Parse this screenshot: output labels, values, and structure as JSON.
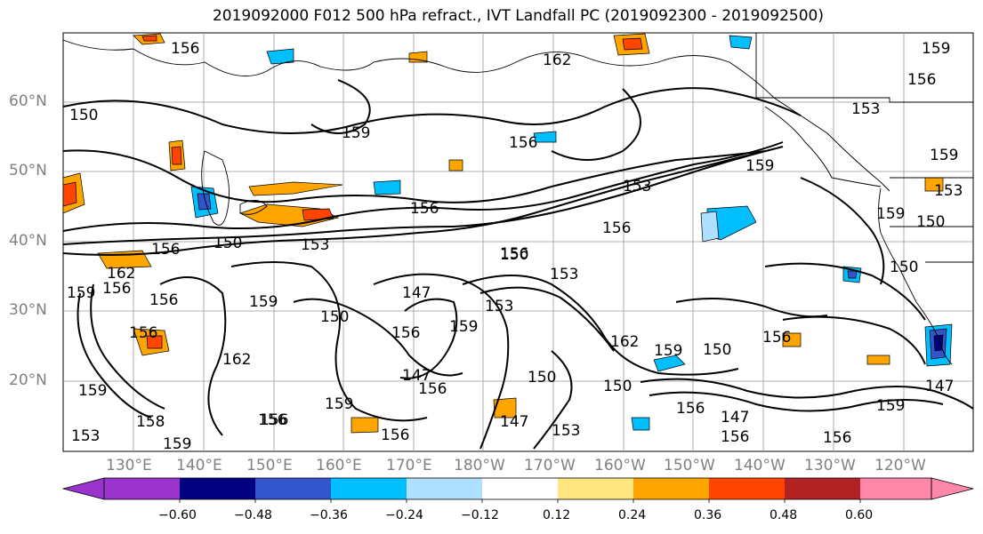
{
  "title": "2019092000 F012 500 hPa refract., IVT Landfall PC (2019092300 - 2019092500)",
  "lat_labels": [
    "60°N",
    "50°N",
    "40°N",
    "30°N",
    "20°N"
  ],
  "lon_labels": [
    "130°E",
    "140°E",
    "150°E",
    "160°E",
    "170°E",
    "180°W",
    "170°W",
    "160°W",
    "150°W",
    "140°W",
    "130°W",
    "120°W"
  ],
  "colorbar": {
    "ticks": [
      "−0.60",
      "−0.48",
      "−0.36",
      "−0.24",
      "−0.12",
      "0.12",
      "0.24",
      "0.36",
      "0.48",
      "0.60"
    ],
    "colors": [
      "#9933cc",
      "#000080",
      "#3355cc",
      "#00bfff",
      "#b0e0ff",
      "#ffffff",
      "#ffe680",
      "#ffa500",
      "#ff4500",
      "#b22222",
      "#ff88aa"
    ]
  },
  "contour_labels": [
    "159",
    "162",
    "159",
    "156",
    "159",
    "156",
    "153",
    "159",
    "159",
    "156",
    "156",
    "150",
    "153",
    "156",
    "156",
    "162",
    "156",
    "150",
    "159",
    "162",
    "156",
    "159",
    "150",
    "147",
    "156",
    "159",
    "147",
    "153",
    "153",
    "156",
    "156",
    "147",
    "150",
    "150",
    "162",
    "159",
    "150",
    "156",
    "156",
    "147",
    "150",
    "159",
    "153",
    "156",
    "159",
    "156",
    "158",
    "159",
    "156",
    "153",
    "156",
    "147",
    "156",
    "156",
    "150",
    "153",
    "150",
    "159",
    "153"
  ]
}
